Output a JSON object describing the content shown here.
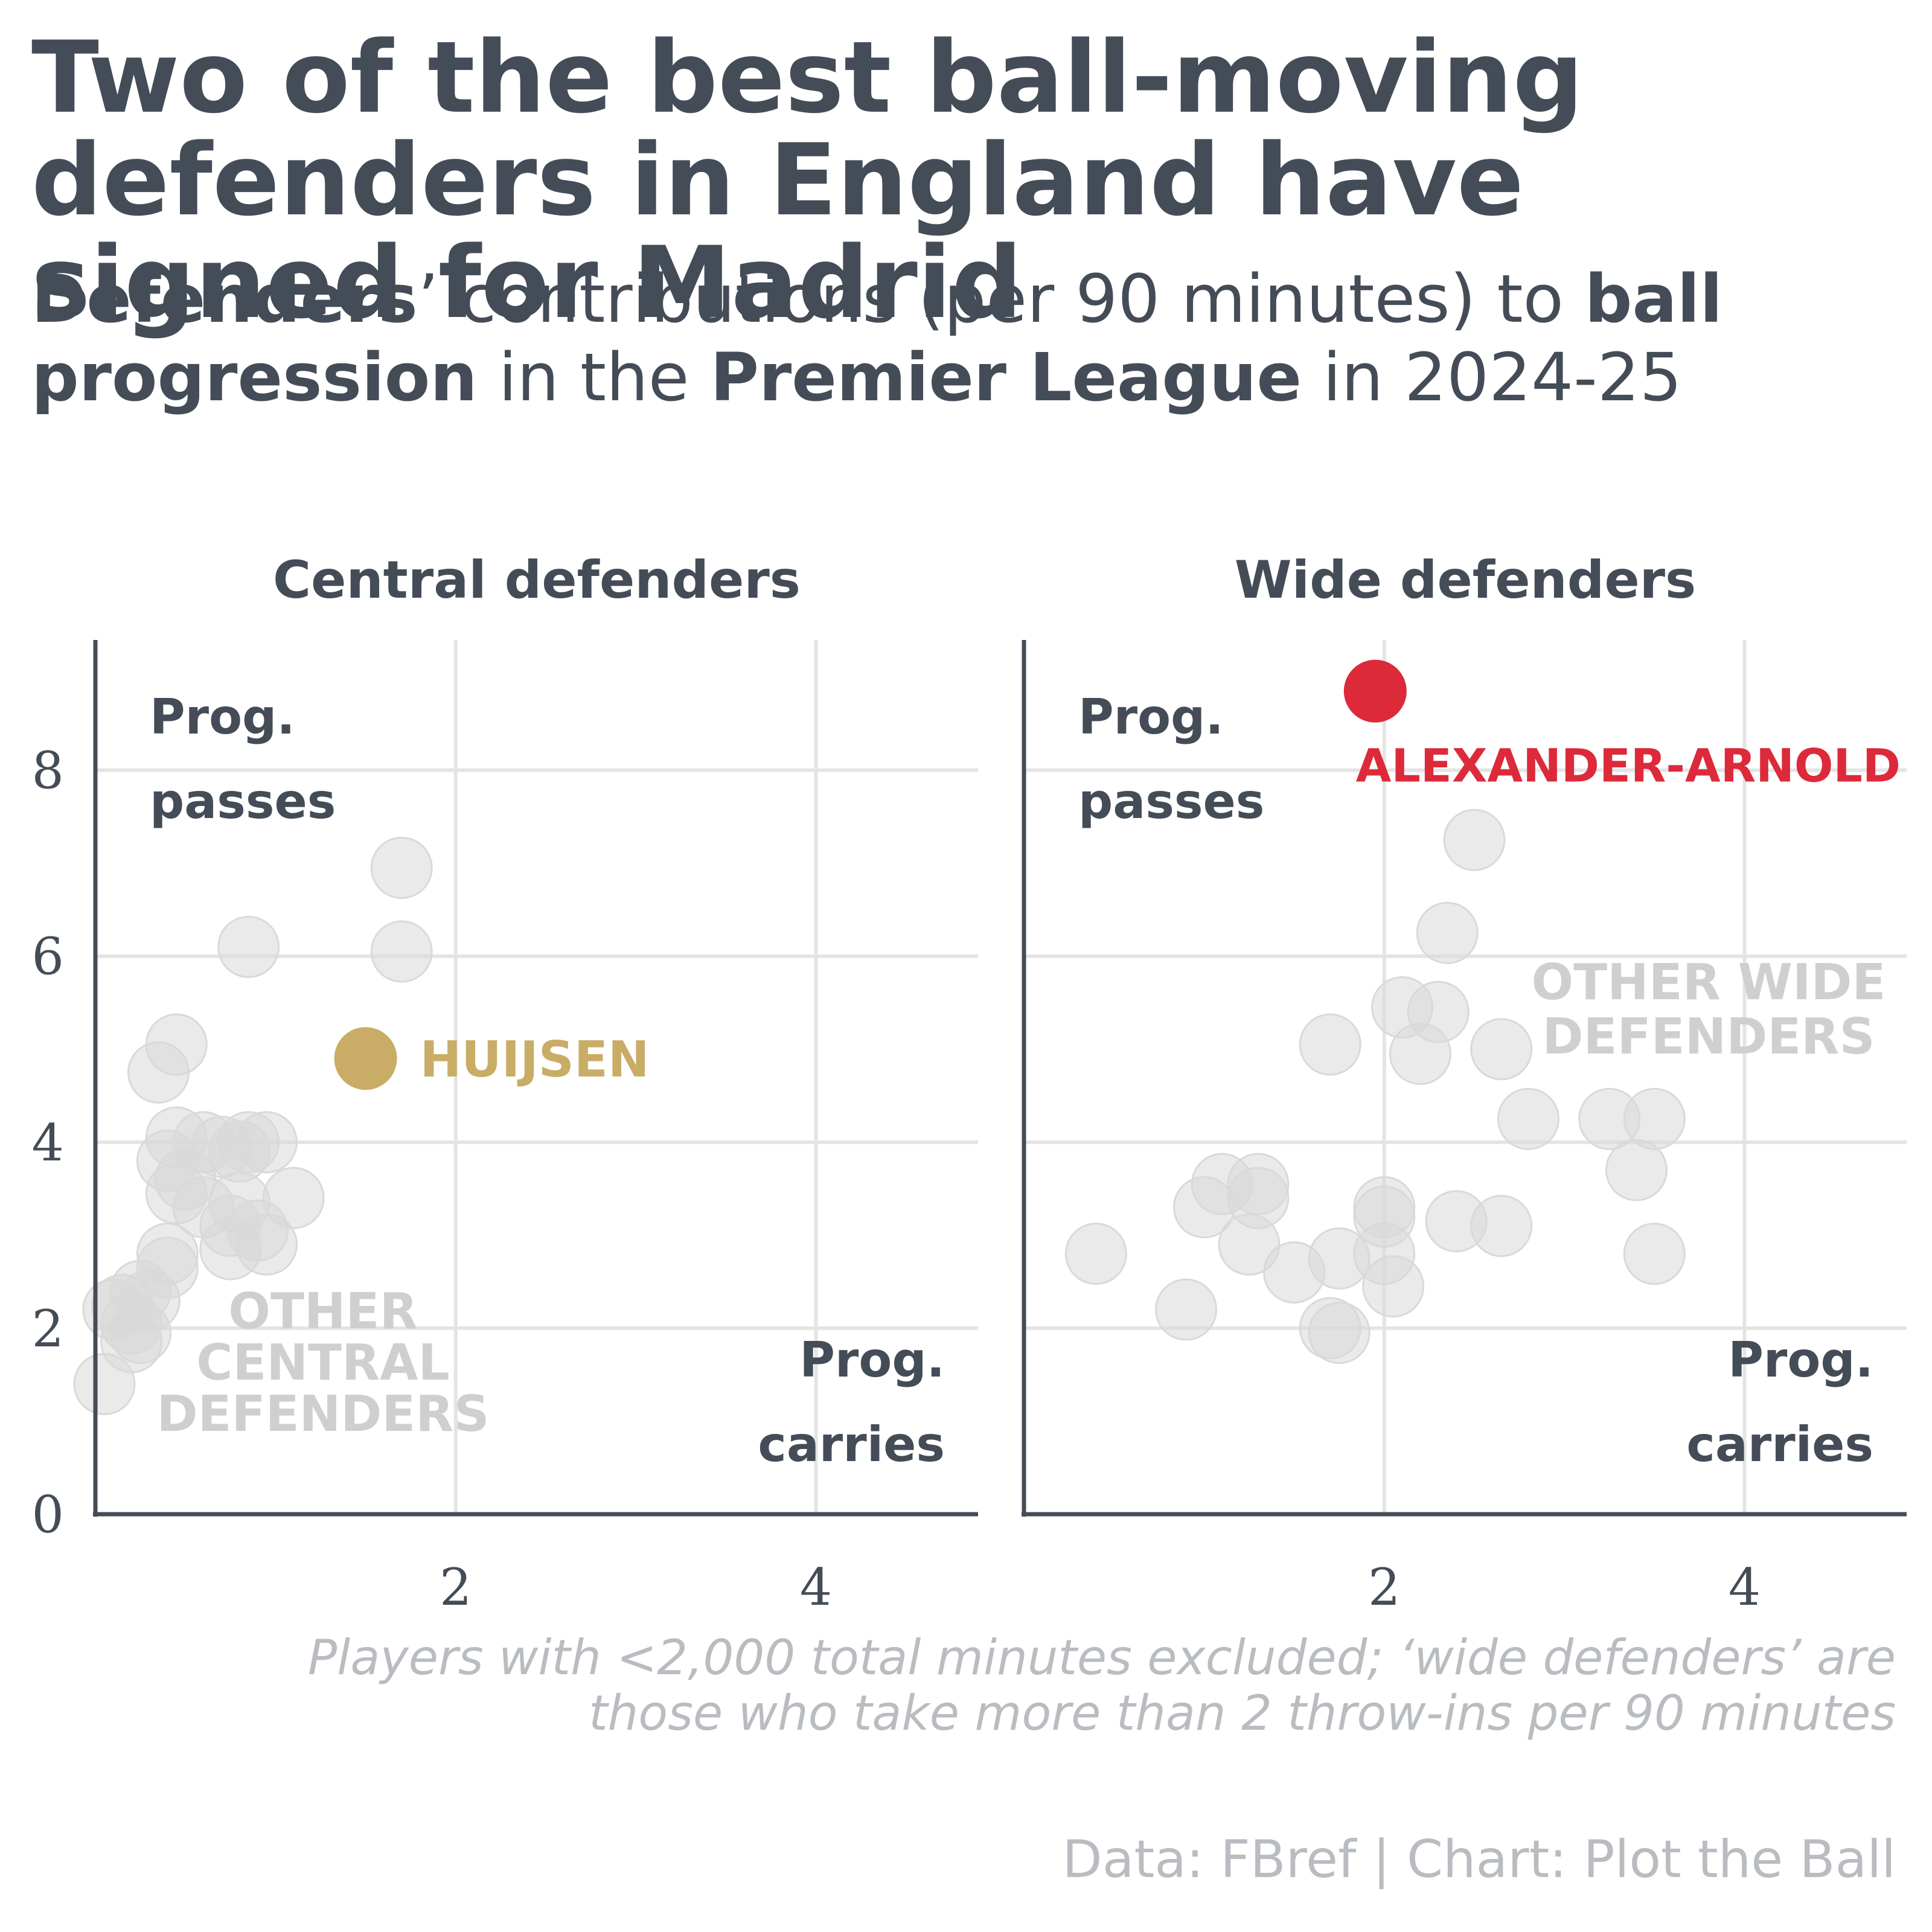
{
  "title": "Two of the best ball-moving defenders in England have signed for Madrid",
  "subtitle": [
    {
      "text": "Defenders",
      "bold": true
    },
    {
      "text": "’ contributions (per 90 minutes) to ",
      "bold": false
    },
    {
      "text": "ball progression",
      "bold": true
    },
    {
      "text": " in the ",
      "bold": false
    },
    {
      "text": "Premier League",
      "bold": true
    },
    {
      "text": " in 2024-25",
      "bold": false
    }
  ],
  "caption_line1": "Players with <2,000 total minutes excluded; ‘wide defenders’ are",
  "caption_line2": "those who take more than 2 throw-ins per 90 minutes",
  "source": "Data: FBref | Chart: Plot the Ball",
  "colors": {
    "text": "#444c57",
    "axis": "#444c57",
    "grid": "#e4e4e4",
    "other_points": "#d9d9d9",
    "other_label": "#cfcfcf",
    "huijsen": "#c9ad66",
    "alexander_arnold": "#dc2a3a"
  },
  "chart_data": [
    {
      "type": "scatter",
      "title": "Central defenders",
      "xlabel": "Prog. carries",
      "ylabel": "Prog. passes",
      "xlim": [
        0,
        4.9
      ],
      "ylim": [
        0,
        9.4
      ],
      "x_ticks": [
        "2",
        "4"
      ],
      "y_ticks": [
        "0",
        "2",
        "4",
        "6",
        "8"
      ],
      "grid": true,
      "group_label": [
        "OTHER",
        "CENTRAL",
        "DEFENDERS"
      ],
      "highlight": {
        "name": "HUIJSEN",
        "x": 1.5,
        "y": 4.9
      },
      "others": [
        [
          1.7,
          6.95
        ],
        [
          1.7,
          6.05
        ],
        [
          0.85,
          6.1
        ],
        [
          0.45,
          5.05
        ],
        [
          0.35,
          4.75
        ],
        [
          0.45,
          4.05
        ],
        [
          0.6,
          4.0
        ],
        [
          0.7,
          3.95
        ],
        [
          0.85,
          4.0
        ],
        [
          0.95,
          4.0
        ],
        [
          0.8,
          3.9
        ],
        [
          0.4,
          3.8
        ],
        [
          0.5,
          3.6
        ],
        [
          0.45,
          3.45
        ],
        [
          0.6,
          3.3
        ],
        [
          0.8,
          3.35
        ],
        [
          1.1,
          3.4
        ],
        [
          0.75,
          3.1
        ],
        [
          0.9,
          3.05
        ],
        [
          0.95,
          2.9
        ],
        [
          0.75,
          2.85
        ],
        [
          0.4,
          2.8
        ],
        [
          0.4,
          2.65
        ],
        [
          0.25,
          2.4
        ],
        [
          0.3,
          2.3
        ],
        [
          0.15,
          2.25
        ],
        [
          0.1,
          2.2
        ],
        [
          0.2,
          2.05
        ],
        [
          0.25,
          1.95
        ],
        [
          0.2,
          1.85
        ],
        [
          0.05,
          1.4
        ]
      ]
    },
    {
      "type": "scatter",
      "title": "Wide defenders",
      "xlabel": "Prog. carries",
      "ylabel": "Prog. passes",
      "xlim": [
        0,
        4.9
      ],
      "ylim": [
        0,
        9.4
      ],
      "x_ticks": [
        "2",
        "4"
      ],
      "y_ticks": [],
      "grid": true,
      "group_label": [
        "OTHER WIDE",
        "DEFENDERS"
      ],
      "highlight": {
        "name": "ALEXANDER-ARNOLD",
        "x": 1.95,
        "y": 8.85
      },
      "others": [
        [
          2.5,
          7.25
        ],
        [
          2.35,
          6.25
        ],
        [
          2.1,
          5.45
        ],
        [
          2.3,
          5.4
        ],
        [
          2.2,
          4.95
        ],
        [
          1.7,
          5.05
        ],
        [
          2.65,
          5.0
        ],
        [
          2.8,
          4.25
        ],
        [
          3.25,
          4.25
        ],
        [
          3.5,
          4.25
        ],
        [
          3.4,
          3.7
        ],
        [
          1.1,
          3.55
        ],
        [
          1.3,
          3.55
        ],
        [
          1.0,
          3.3
        ],
        [
          1.3,
          3.4
        ],
        [
          1.25,
          2.9
        ],
        [
          2.0,
          3.3
        ],
        [
          2.0,
          3.2
        ],
        [
          2.4,
          3.15
        ],
        [
          2.65,
          3.1
        ],
        [
          1.5,
          2.6
        ],
        [
          1.75,
          2.75
        ],
        [
          2.0,
          2.8
        ],
        [
          2.05,
          2.45
        ],
        [
          0.4,
          2.8
        ],
        [
          0.9,
          2.2
        ],
        [
          1.7,
          2.0
        ],
        [
          1.75,
          1.95
        ],
        [
          3.5,
          2.8
        ]
      ]
    }
  ]
}
